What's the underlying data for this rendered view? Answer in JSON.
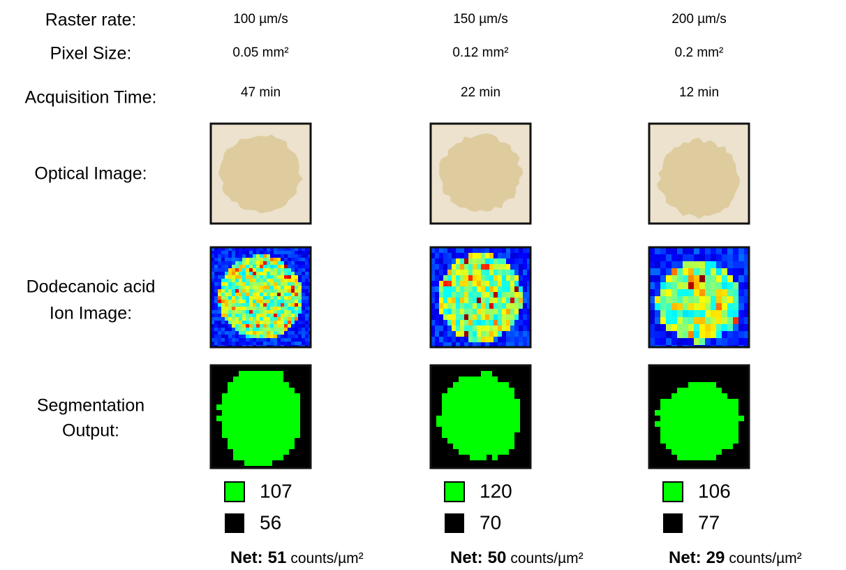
{
  "rows": {
    "raster_rate": "Raster rate:",
    "pixel_size": "Pixel Size:",
    "acquisition_time": "Acquisition Time:",
    "optical_image": "Optical Image:",
    "ion_image": [
      "Dodecanoic acid",
      "Ion Image:"
    ],
    "segmentation": [
      "Segmentation",
      "Output:"
    ]
  },
  "columns": [
    {
      "raster_rate": "100 µm/s",
      "pixel_size": "0.05 mm²",
      "acquisition_time": "47 min",
      "foreground": 107,
      "background": 56,
      "net": {
        "label": "Net:",
        "value": 51,
        "unit": "counts/µm²"
      }
    },
    {
      "raster_rate": "150 µm/s",
      "pixel_size": "0.12 mm²",
      "acquisition_time": "22 min",
      "foreground": 120,
      "background": 70,
      "net": {
        "label": "Net:",
        "value": 50,
        "unit": "counts/µm²"
      }
    },
    {
      "raster_rate": "200 µm/s",
      "pixel_size": "0.2 mm²",
      "acquisition_time": "12 min",
      "foreground": 106,
      "background": 77,
      "net": {
        "label": "Net:",
        "value": 29,
        "unit": "counts/µm²"
      }
    }
  ]
}
